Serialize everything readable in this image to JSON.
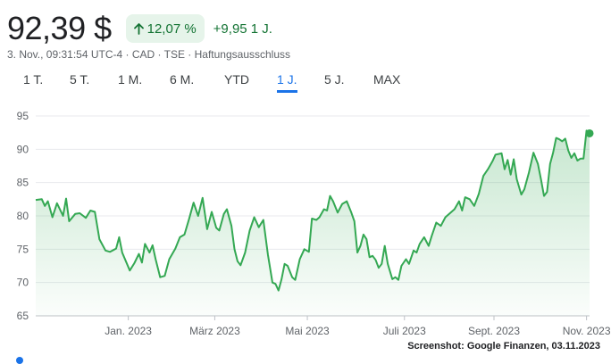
{
  "quote": {
    "price": "92,39 $",
    "change_pct": "12,07 %",
    "change_abs": "+9,95 1 J.",
    "meta": "3. Nov., 09:31:54 UTC-4 · CAD · TSE · Haftungsausschluss",
    "arrow_icon": "arrow-up-icon"
  },
  "tabs": [
    {
      "label": "1 T."
    },
    {
      "label": "5 T."
    },
    {
      "label": "1 M."
    },
    {
      "label": "6 M."
    },
    {
      "label": "YTD"
    },
    {
      "label": "1 J.",
      "active": true
    },
    {
      "label": "5 J."
    },
    {
      "label": "MAX"
    }
  ],
  "colors": {
    "line": "#34a853",
    "positive": "#137333",
    "positive_bg": "#e6f4ea",
    "active_tab": "#1a73e8",
    "grid": "#e8eaed"
  },
  "credit": "Screenshot: Google Finanzen, 03.11.2023",
  "chart_data": {
    "type": "area",
    "ylim": [
      65,
      95
    ],
    "yticks": [
      65,
      70,
      75,
      80,
      85,
      90,
      95
    ],
    "xlim": [
      "2022-11-03",
      "2023-11-03"
    ],
    "xticks": [
      {
        "label": "Jan. 2023",
        "date": "2023-01-03"
      },
      {
        "label": "März 2023",
        "date": "2023-03-01"
      },
      {
        "label": "Mai 2023",
        "date": "2023-05-01"
      },
      {
        "label": "Juli 2023",
        "date": "2023-07-04"
      },
      {
        "label": "Sept. 2023",
        "date": "2023-09-01"
      },
      {
        "label": "Nov. 2023",
        "date": "2023-11-01"
      }
    ],
    "grid": true,
    "series": [
      {
        "points": [
          [
            "2022-11-03",
            82.4
          ],
          [
            "2022-11-07",
            82.5
          ],
          [
            "2022-11-09",
            81.5
          ],
          [
            "2022-11-11",
            82.2
          ],
          [
            "2022-11-14",
            79.8
          ],
          [
            "2022-11-17",
            81.9
          ],
          [
            "2022-11-21",
            80.0
          ],
          [
            "2022-11-23",
            82.6
          ],
          [
            "2022-11-25",
            79.2
          ],
          [
            "2022-11-29",
            80.3
          ],
          [
            "2022-12-02",
            80.4
          ],
          [
            "2022-12-06",
            79.7
          ],
          [
            "2022-12-09",
            80.8
          ],
          [
            "2022-12-12",
            80.6
          ],
          [
            "2022-12-15",
            76.5
          ],
          [
            "2022-12-19",
            74.8
          ],
          [
            "2022-12-22",
            74.6
          ],
          [
            "2022-12-26",
            75.1
          ],
          [
            "2022-12-28",
            76.8
          ],
          [
            "2022-12-30",
            74.5
          ],
          [
            "2023-01-04",
            71.8
          ],
          [
            "2023-01-07",
            72.9
          ],
          [
            "2023-01-10",
            74.3
          ],
          [
            "2023-01-12",
            73.0
          ],
          [
            "2023-01-14",
            75.8
          ],
          [
            "2023-01-17",
            74.5
          ],
          [
            "2023-01-19",
            75.6
          ],
          [
            "2023-01-21",
            73.5
          ],
          [
            "2023-01-24",
            70.8
          ],
          [
            "2023-01-27",
            71.0
          ],
          [
            "2023-01-30",
            73.5
          ],
          [
            "2023-02-03",
            75.1
          ],
          [
            "2023-02-06",
            76.8
          ],
          [
            "2023-02-09",
            77.2
          ],
          [
            "2023-02-12",
            79.5
          ],
          [
            "2023-02-15",
            82.0
          ],
          [
            "2023-02-18",
            80.0
          ],
          [
            "2023-02-21",
            82.7
          ],
          [
            "2023-02-24",
            78.0
          ],
          [
            "2023-02-27",
            80.6
          ],
          [
            "2023-03-02",
            78.2
          ],
          [
            "2023-03-04",
            77.8
          ],
          [
            "2023-03-07",
            80.3
          ],
          [
            "2023-03-09",
            81.0
          ],
          [
            "2023-03-12",
            78.5
          ],
          [
            "2023-03-14",
            75.0
          ],
          [
            "2023-03-16",
            73.2
          ],
          [
            "2023-03-18",
            72.6
          ],
          [
            "2023-03-21",
            74.5
          ],
          [
            "2023-03-24",
            77.8
          ],
          [
            "2023-03-27",
            79.8
          ],
          [
            "2023-03-30",
            78.3
          ],
          [
            "2023-04-02",
            79.4
          ],
          [
            "2023-04-05",
            74.2
          ],
          [
            "2023-04-08",
            70.0
          ],
          [
            "2023-04-10",
            69.8
          ],
          [
            "2023-04-12",
            68.8
          ],
          [
            "2023-04-14",
            70.5
          ],
          [
            "2023-04-16",
            72.8
          ],
          [
            "2023-04-18",
            72.5
          ],
          [
            "2023-04-21",
            70.8
          ],
          [
            "2023-04-23",
            70.4
          ],
          [
            "2023-04-26",
            73.5
          ],
          [
            "2023-04-29",
            75.0
          ],
          [
            "2023-05-02",
            74.6
          ],
          [
            "2023-05-04",
            79.6
          ],
          [
            "2023-05-07",
            79.4
          ],
          [
            "2023-05-09",
            79.8
          ],
          [
            "2023-05-12",
            81.0
          ],
          [
            "2023-05-14",
            80.8
          ],
          [
            "2023-05-16",
            83.0
          ],
          [
            "2023-05-18",
            82.2
          ],
          [
            "2023-05-21",
            80.5
          ],
          [
            "2023-05-24",
            81.8
          ],
          [
            "2023-05-27",
            82.2
          ],
          [
            "2023-05-30",
            80.5
          ],
          [
            "2023-06-01",
            79.2
          ],
          [
            "2023-06-03",
            74.5
          ],
          [
            "2023-06-05",
            75.5
          ],
          [
            "2023-06-07",
            77.2
          ],
          [
            "2023-06-09",
            76.5
          ],
          [
            "2023-06-11",
            73.8
          ],
          [
            "2023-06-13",
            74.0
          ],
          [
            "2023-06-15",
            73.4
          ],
          [
            "2023-06-17",
            72.2
          ],
          [
            "2023-06-19",
            72.8
          ],
          [
            "2023-06-21",
            75.5
          ],
          [
            "2023-06-23",
            72.8
          ],
          [
            "2023-06-26",
            70.5
          ],
          [
            "2023-06-28",
            70.8
          ],
          [
            "2023-06-30",
            70.4
          ],
          [
            "2023-07-02",
            72.5
          ],
          [
            "2023-07-05",
            73.5
          ],
          [
            "2023-07-07",
            72.8
          ],
          [
            "2023-07-10",
            74.8
          ],
          [
            "2023-07-12",
            74.5
          ],
          [
            "2023-07-14",
            75.8
          ],
          [
            "2023-07-17",
            76.8
          ],
          [
            "2023-07-20",
            75.5
          ],
          [
            "2023-07-22",
            77.0
          ],
          [
            "2023-07-25",
            79.0
          ],
          [
            "2023-07-28",
            78.5
          ],
          [
            "2023-07-31",
            79.8
          ],
          [
            "2023-08-03",
            80.4
          ],
          [
            "2023-08-06",
            81.0
          ],
          [
            "2023-08-09",
            82.2
          ],
          [
            "2023-08-11",
            80.8
          ],
          [
            "2023-08-13",
            82.8
          ],
          [
            "2023-08-16",
            82.5
          ],
          [
            "2023-08-19",
            81.5
          ],
          [
            "2023-08-22",
            83.3
          ],
          [
            "2023-08-25",
            86.0
          ],
          [
            "2023-08-28",
            87.0
          ],
          [
            "2023-08-31",
            88.2
          ],
          [
            "2023-09-02",
            89.2
          ],
          [
            "2023-09-04",
            89.3
          ],
          [
            "2023-09-06",
            89.4
          ],
          [
            "2023-09-08",
            87.0
          ],
          [
            "2023-09-10",
            88.4
          ],
          [
            "2023-09-12",
            86.2
          ],
          [
            "2023-09-14",
            88.5
          ],
          [
            "2023-09-16",
            85.5
          ],
          [
            "2023-09-19",
            83.2
          ],
          [
            "2023-09-21",
            84.0
          ],
          [
            "2023-09-24",
            86.5
          ],
          [
            "2023-09-27",
            89.5
          ],
          [
            "2023-09-30",
            87.8
          ],
          [
            "2023-10-02",
            85.5
          ],
          [
            "2023-10-04",
            83.0
          ],
          [
            "2023-10-06",
            83.6
          ],
          [
            "2023-10-08",
            87.8
          ],
          [
            "2023-10-10",
            89.5
          ],
          [
            "2023-10-12",
            91.7
          ],
          [
            "2023-10-14",
            91.5
          ],
          [
            "2023-10-16",
            91.2
          ],
          [
            "2023-10-18",
            91.6
          ],
          [
            "2023-10-20",
            89.8
          ],
          [
            "2023-10-22",
            88.7
          ],
          [
            "2023-10-24",
            89.4
          ],
          [
            "2023-10-26",
            88.3
          ],
          [
            "2023-10-28",
            88.6
          ],
          [
            "2023-10-30",
            88.6
          ],
          [
            "2023-11-01",
            92.8
          ],
          [
            "2023-11-03",
            92.39
          ]
        ]
      }
    ]
  }
}
